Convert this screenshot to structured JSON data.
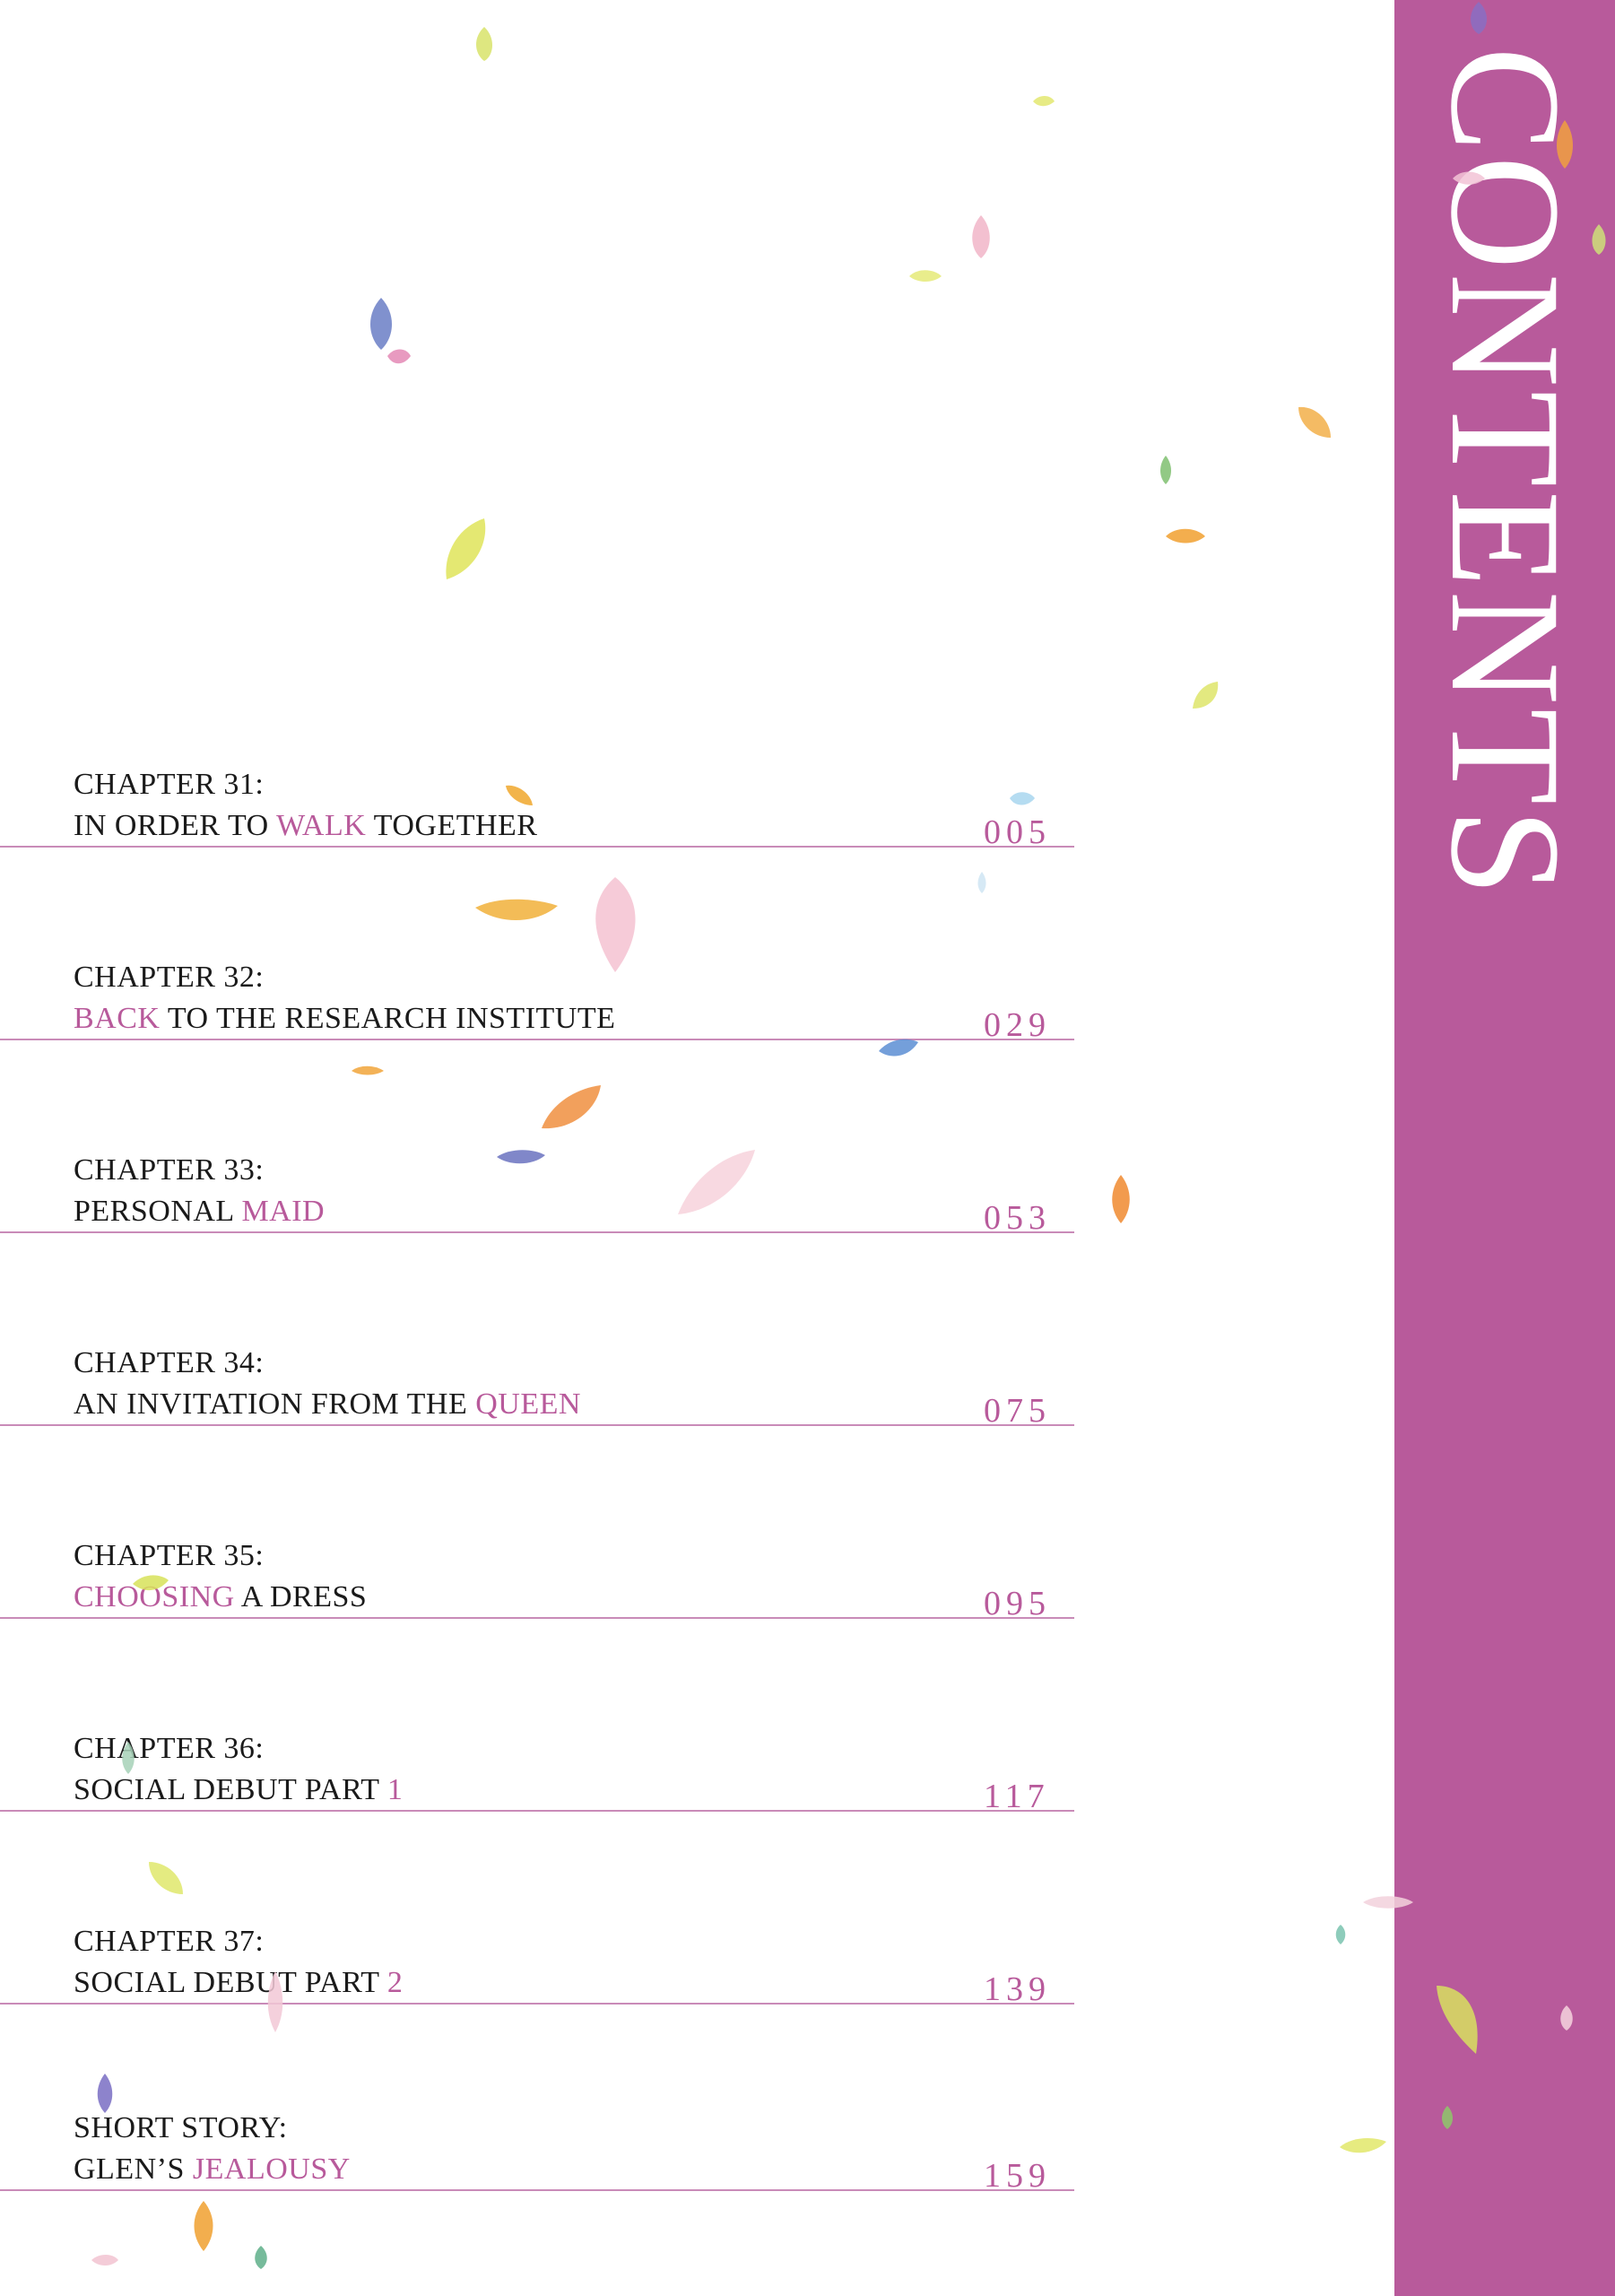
{
  "heading": "CONTENTS",
  "entries": [
    {
      "label": "CHAPTER 31:",
      "title_parts": [
        {
          "text": "IN ORDER TO ",
          "accent": false
        },
        {
          "text": "WALK",
          "accent": true
        },
        {
          "text": " TOGETHER",
          "accent": false
        }
      ],
      "page": "005"
    },
    {
      "label": "CHAPTER 32:",
      "title_parts": [
        {
          "text": "BACK",
          "accent": true
        },
        {
          "text": " TO THE RESEARCH INSTITUTE",
          "accent": false
        }
      ],
      "page": "029"
    },
    {
      "label": "CHAPTER 33:",
      "title_parts": [
        {
          "text": "PERSONAL ",
          "accent": false
        },
        {
          "text": "MAID",
          "accent": true
        }
      ],
      "page": "053"
    },
    {
      "label": "CHAPTER 34:",
      "title_parts": [
        {
          "text": "AN INVITATION FROM THE ",
          "accent": false
        },
        {
          "text": "QUEEN",
          "accent": true
        }
      ],
      "page": "075"
    },
    {
      "label": "CHAPTER 35:",
      "title_parts": [
        {
          "text": "CHOOSING",
          "accent": true
        },
        {
          "text": " A DRESS",
          "accent": false
        }
      ],
      "page": "095"
    },
    {
      "label": "CHAPTER 36:",
      "title_parts": [
        {
          "text": "SOCIAL DEBUT PART ",
          "accent": false
        },
        {
          "text": "1",
          "accent": true
        }
      ],
      "page": "117"
    },
    {
      "label": "CHAPTER 37:",
      "title_parts": [
        {
          "text": "SOCIAL DEBUT PART ",
          "accent": false
        },
        {
          "text": "2",
          "accent": true
        }
      ],
      "page": "139"
    },
    {
      "label": "SHORT STORY:",
      "title_parts": [
        {
          "text": "GLEN’S ",
          "accent": false
        },
        {
          "text": "JEALOUSY",
          "accent": true
        }
      ],
      "page": "159"
    }
  ],
  "colors": {
    "accent": "#b85a9b",
    "rule": "#c98bb8",
    "text": "#1a1a1a"
  },
  "decoration": "petal-icon"
}
